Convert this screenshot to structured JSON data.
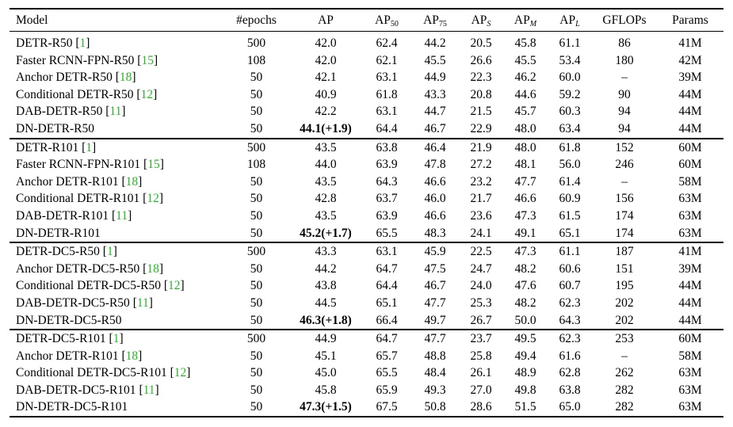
{
  "table": {
    "headers": {
      "model": "Model",
      "epochs": "#epochs",
      "ap": "AP",
      "ap50": {
        "base": "AP",
        "sub": "50"
      },
      "ap75": {
        "base": "AP",
        "sub": "75"
      },
      "aps": {
        "base": "AP",
        "sub": "S"
      },
      "apm": {
        "base": "AP",
        "sub": "M"
      },
      "apl": {
        "base": "AP",
        "sub": "L"
      },
      "gflops": "GFLOPs",
      "params": "Params"
    },
    "groups": [
      {
        "rows": [
          {
            "name": "DETR-R50",
            "cite": "1",
            "epochs": "500",
            "ap": "42.0",
            "ap_bold": false,
            "ap50": "62.4",
            "ap75": "44.2",
            "aps": "20.5",
            "apm": "45.8",
            "apl": "61.1",
            "gflops": "86",
            "params": "41M"
          },
          {
            "name": "Faster RCNN-FPN-R50",
            "cite": "15",
            "epochs": "108",
            "ap": "42.0",
            "ap_bold": false,
            "ap50": "62.1",
            "ap75": "45.5",
            "aps": "26.6",
            "apm": "45.5",
            "apl": "53.4",
            "gflops": "180",
            "params": "42M"
          },
          {
            "name": "Anchor DETR-R50",
            "cite": "18",
            "epochs": "50",
            "ap": "42.1",
            "ap_bold": false,
            "ap50": "63.1",
            "ap75": "44.9",
            "aps": "22.3",
            "apm": "46.2",
            "apl": "60.0",
            "gflops": "–",
            "params": "39M"
          },
          {
            "name": "Conditional DETR-R50",
            "cite": "12",
            "epochs": "50",
            "ap": "40.9",
            "ap_bold": false,
            "ap50": "61.8",
            "ap75": "43.3",
            "aps": "20.8",
            "apm": "44.6",
            "apl": "59.2",
            "gflops": "90",
            "params": "44M"
          },
          {
            "name": "DAB-DETR-R50",
            "cite": "11",
            "epochs": "50",
            "ap": "42.2",
            "ap_bold": false,
            "ap50": "63.1",
            "ap75": "44.7",
            "aps": "21.5",
            "apm": "45.7",
            "apl": "60.3",
            "gflops": "94",
            "params": "44M"
          },
          {
            "name": "DN-DETR-R50",
            "cite": "",
            "epochs": "50",
            "ap": "44.1(+1.9)",
            "ap_bold": true,
            "ap50": "64.4",
            "ap75": "46.7",
            "aps": "22.9",
            "apm": "48.0",
            "apl": "63.4",
            "gflops": "94",
            "params": "44M"
          }
        ]
      },
      {
        "rows": [
          {
            "name": "DETR-R101",
            "cite": "1",
            "epochs": "500",
            "ap": "43.5",
            "ap_bold": false,
            "ap50": "63.8",
            "ap75": "46.4",
            "aps": "21.9",
            "apm": "48.0",
            "apl": "61.8",
            "gflops": "152",
            "params": "60M"
          },
          {
            "name": "Faster RCNN-FPN-R101",
            "cite": "15",
            "epochs": "108",
            "ap": "44.0",
            "ap_bold": false,
            "ap50": "63.9",
            "ap75": "47.8",
            "aps": "27.2",
            "apm": "48.1",
            "apl": "56.0",
            "gflops": "246",
            "params": "60M"
          },
          {
            "name": "Anchor DETR-R101",
            "cite": "18",
            "epochs": "50",
            "ap": "43.5",
            "ap_bold": false,
            "ap50": "64.3",
            "ap75": "46.6",
            "aps": "23.2",
            "apm": "47.7",
            "apl": "61.4",
            "gflops": "–",
            "params": "58M"
          },
          {
            "name": "Conditional DETR-R101",
            "cite": "12",
            "epochs": "50",
            "ap": "42.8",
            "ap_bold": false,
            "ap50": "63.7",
            "ap75": "46.0",
            "aps": "21.7",
            "apm": "46.6",
            "apl": "60.9",
            "gflops": "156",
            "params": "63M"
          },
          {
            "name": "DAB-DETR-R101",
            "cite": "11",
            "epochs": "50",
            "ap": "43.5",
            "ap_bold": false,
            "ap50": "63.9",
            "ap75": "46.6",
            "aps": "23.6",
            "apm": "47.3",
            "apl": "61.5",
            "gflops": "174",
            "params": "63M"
          },
          {
            "name": "DN-DETR-R101",
            "cite": "",
            "epochs": "50",
            "ap": "45.2(+1.7)",
            "ap_bold": true,
            "ap50": "65.5",
            "ap75": "48.3",
            "aps": "24.1",
            "apm": "49.1",
            "apl": "65.1",
            "gflops": "174",
            "params": "63M"
          }
        ]
      },
      {
        "rows": [
          {
            "name": "DETR-DC5-R50",
            "cite": "1",
            "epochs": "500",
            "ap": "43.3",
            "ap_bold": false,
            "ap50": "63.1",
            "ap75": "45.9",
            "aps": "22.5",
            "apm": "47.3",
            "apl": "61.1",
            "gflops": "187",
            "params": "41M"
          },
          {
            "name": "Anchor DETR-DC5-R50",
            "cite": "18",
            "epochs": "50",
            "ap": "44.2",
            "ap_bold": false,
            "ap50": "64.7",
            "ap75": "47.5",
            "aps": "24.7",
            "apm": "48.2",
            "apl": "60.6",
            "gflops": "151",
            "params": "39M"
          },
          {
            "name": "Conditional DETR-DC5-R50",
            "cite": "12",
            "epochs": "50",
            "ap": "43.8",
            "ap_bold": false,
            "ap50": "64.4",
            "ap75": "46.7",
            "aps": "24.0",
            "apm": "47.6",
            "apl": "60.7",
            "gflops": "195",
            "params": "44M"
          },
          {
            "name": "DAB-DETR-DC5-R50",
            "cite": "11",
            "epochs": "50",
            "ap": "44.5",
            "ap_bold": false,
            "ap50": "65.1",
            "ap75": "47.7",
            "aps": "25.3",
            "apm": "48.2",
            "apl": "62.3",
            "gflops": "202",
            "params": "44M"
          },
          {
            "name": "DN-DETR-DC5-R50",
            "cite": "",
            "epochs": "50",
            "ap": "46.3(+1.8)",
            "ap_bold": true,
            "ap50": "66.4",
            "ap75": "49.7",
            "aps": "26.7",
            "apm": "50.0",
            "apl": "64.3",
            "gflops": "202",
            "params": "44M"
          }
        ]
      },
      {
        "rows": [
          {
            "name": "DETR-DC5-R101",
            "cite": "1",
            "epochs": "500",
            "ap": "44.9",
            "ap_bold": false,
            "ap50": "64.7",
            "ap75": "47.7",
            "aps": "23.7",
            "apm": "49.5",
            "apl": "62.3",
            "gflops": "253",
            "params": "60M"
          },
          {
            "name": "Anchor DETR-R101",
            "cite": "18",
            "epochs": "50",
            "ap": "45.1",
            "ap_bold": false,
            "ap50": "65.7",
            "ap75": "48.8",
            "aps": "25.8",
            "apm": "49.4",
            "apl": "61.6",
            "gflops": "–",
            "params": "58M"
          },
          {
            "name": "Conditional DETR-DC5-R101",
            "cite": "12",
            "epochs": "50",
            "ap": "45.0",
            "ap_bold": false,
            "ap50": "65.5",
            "ap75": "48.4",
            "aps": "26.1",
            "apm": "48.9",
            "apl": "62.8",
            "gflops": "262",
            "params": "63M"
          },
          {
            "name": "DAB-DETR-DC5-R101",
            "cite": "11",
            "epochs": "50",
            "ap": "45.8",
            "ap_bold": false,
            "ap50": "65.9",
            "ap75": "49.3",
            "aps": "27.0",
            "apm": "49.8",
            "apl": "63.8",
            "gflops": "282",
            "params": "63M"
          },
          {
            "name": "DN-DETR-DC5-R101",
            "cite": "",
            "epochs": "50",
            "ap": "47.3(+1.5)",
            "ap_bold": true,
            "ap50": "67.5",
            "ap75": "50.8",
            "aps": "28.6",
            "apm": "51.5",
            "apl": "65.0",
            "gflops": "282",
            "params": "63M"
          }
        ]
      }
    ],
    "colors": {
      "citation": "#22bb22",
      "text": "#000000",
      "background": "#ffffff"
    }
  }
}
